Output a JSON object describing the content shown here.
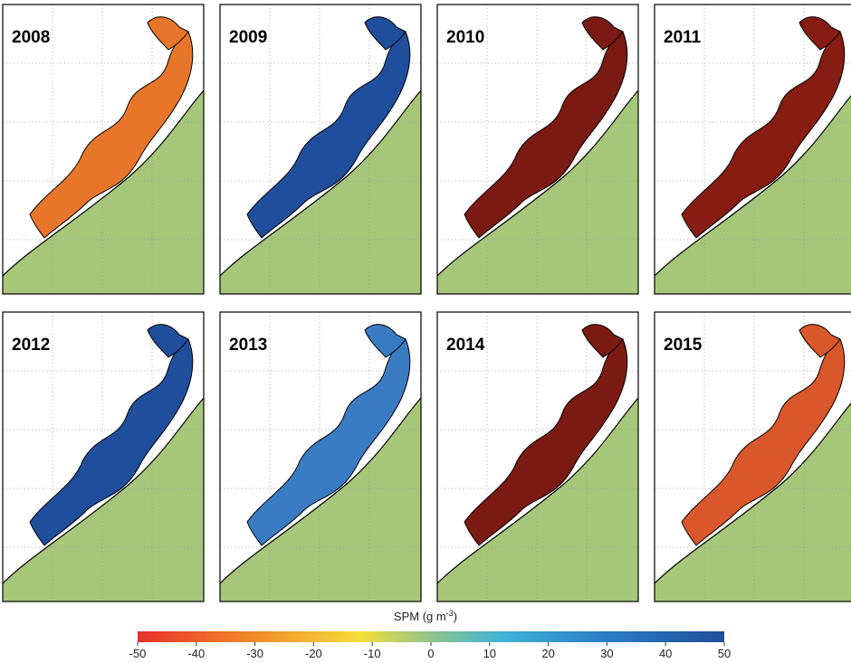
{
  "panels": [
    {
      "label": "2008",
      "color": "#e8762a"
    },
    {
      "label": "2009",
      "color": "#1f4e9c"
    },
    {
      "label": "2010",
      "color": "#7b1a12"
    },
    {
      "label": "2011",
      "color": "#861c12"
    },
    {
      "label": "2012",
      "color": "#1f4e9c"
    },
    {
      "label": "2013",
      "color": "#3a7cc4"
    },
    {
      "label": "2014",
      "color": "#7b1a12"
    },
    {
      "label": "2015",
      "color": "#d9572a"
    }
  ],
  "colorbar": {
    "label": "SPM (g m",
    "label_sup": "-3",
    "label_end": ")",
    "lim": [
      -50,
      50
    ],
    "ticks": [
      -50,
      -40,
      -30,
      -20,
      -10,
      0,
      10,
      20,
      30,
      40,
      50
    ]
  }
}
